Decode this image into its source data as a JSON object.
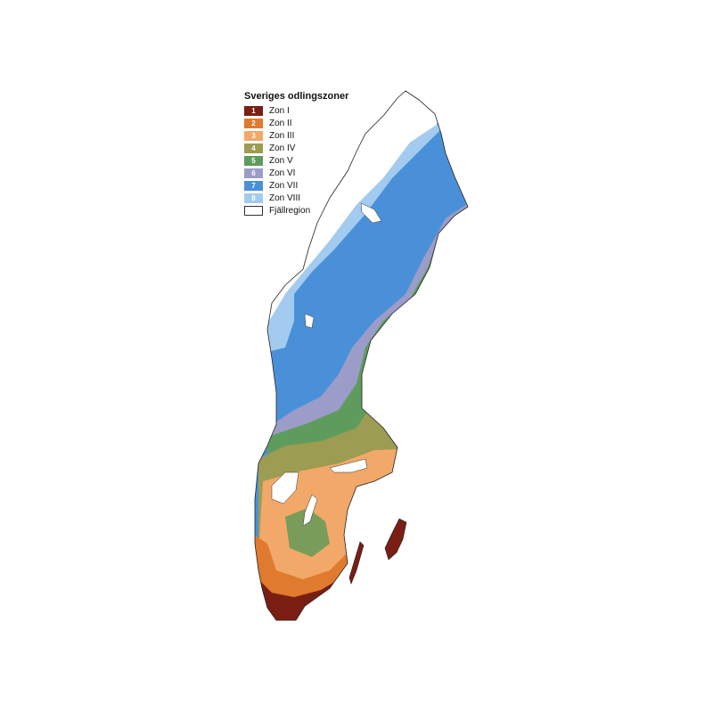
{
  "legend": {
    "title": "Sveriges odlingszoner",
    "items": [
      {
        "number": "1",
        "label": "Zon I",
        "color": "#7a1e14"
      },
      {
        "number": "2",
        "label": "Zon II",
        "color": "#e07a2e"
      },
      {
        "number": "3",
        "label": "Zon III",
        "color": "#f2a868"
      },
      {
        "number": "4",
        "label": "Zon IV",
        "color": "#9c9c52"
      },
      {
        "number": "5",
        "label": "Zon V",
        "color": "#5e9c5e"
      },
      {
        "number": "6",
        "label": "Zon VI",
        "color": "#9c9cc8"
      },
      {
        "number": "7",
        "label": "Zon VII",
        "color": "#4a90d9"
      },
      {
        "number": "8",
        "label": "Zon VIII",
        "color": "#a2cbef"
      },
      {
        "number": "",
        "label": "Fjällregion",
        "color": "#ffffff"
      }
    ]
  }
}
